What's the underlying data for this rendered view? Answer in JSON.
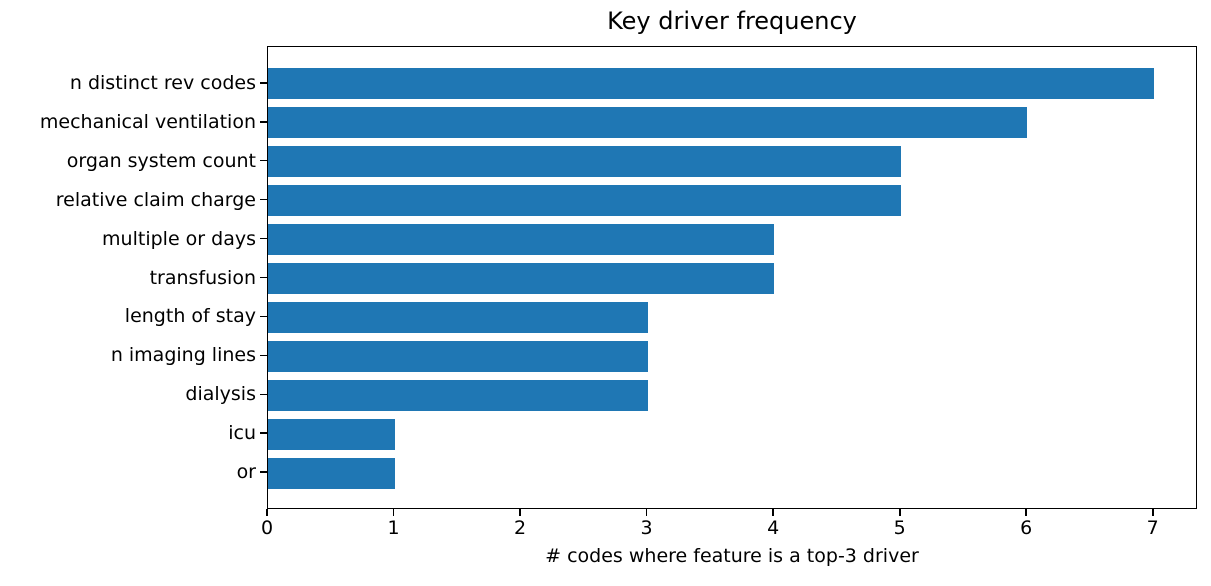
{
  "chart_data": {
    "type": "bar",
    "orientation": "horizontal",
    "title": "Key driver frequency",
    "categories": [
      "n distinct rev codes",
      "mechanical ventilation",
      "organ system count",
      "relative claim charge",
      "multiple or days",
      "transfusion",
      "length of stay",
      "n imaging lines",
      "dialysis",
      "icu",
      "or"
    ],
    "values": [
      7,
      6,
      5,
      5,
      4,
      4,
      3,
      3,
      3,
      1,
      1
    ],
    "xlabel": "# codes where feature is a top-3 driver",
    "ylabel": "",
    "xlim": [
      0,
      7.35
    ],
    "xticks": [
      "0",
      "1",
      "2",
      "3",
      "4",
      "5",
      "6",
      "7"
    ],
    "grid": false,
    "legend": null,
    "bar_color": "#1f77b4",
    "text_color": "#000000",
    "background_color": "#ffffff"
  }
}
